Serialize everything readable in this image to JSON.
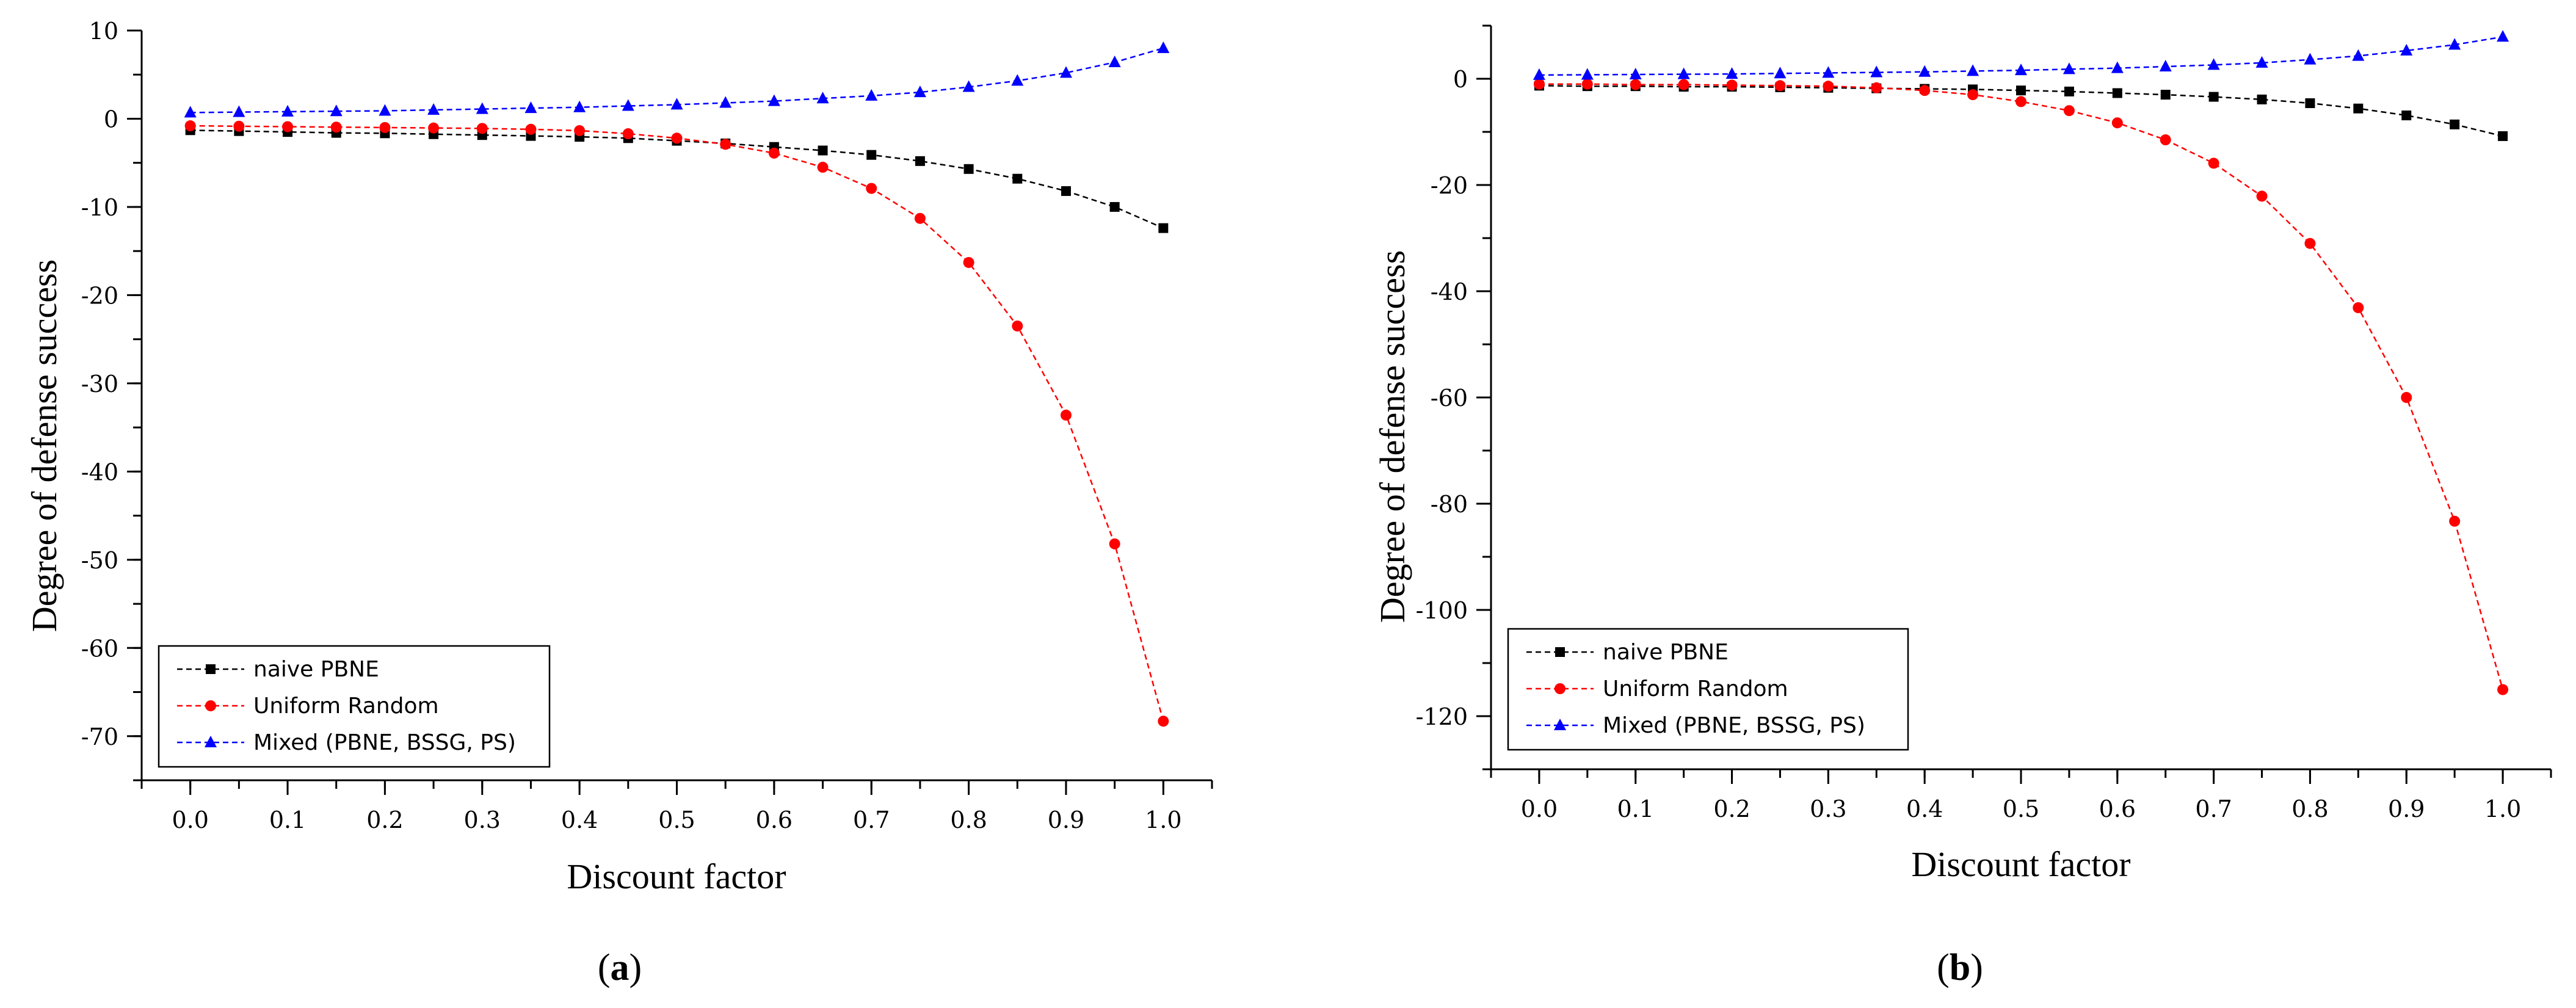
{
  "chart_data": [
    {
      "type": "line",
      "panel_label": "(a)",
      "panel_letter": "a",
      "xlabel": "Discount factor",
      "ylabel": "Degree of defense success",
      "xlim": [
        -0.05,
        1.05
      ],
      "ylim": [
        -75,
        10
      ],
      "x_ticks": [
        0.0,
        0.1,
        0.2,
        0.3,
        0.4,
        0.5,
        0.6,
        0.7,
        0.8,
        0.9,
        1.0
      ],
      "x_tick_labels": [
        "0.0",
        "0.1",
        "0.2",
        "0.3",
        "0.4",
        "0.5",
        "0.6",
        "0.7",
        "0.8",
        "0.9",
        "1.0"
      ],
      "y_ticks": [
        10,
        0,
        -10,
        -20,
        -30,
        -40,
        -50,
        -60,
        -70
      ],
      "y_tick_labels": [
        "10",
        "0",
        "-10",
        "-20",
        "-30",
        "-40",
        "-50",
        "-60",
        "-70"
      ],
      "legend_position": "bottom-left",
      "x": [
        0.0,
        0.05,
        0.1,
        0.15,
        0.2,
        0.25,
        0.3,
        0.35,
        0.4,
        0.45,
        0.5,
        0.55,
        0.6,
        0.65,
        0.7,
        0.75,
        0.8,
        0.85,
        0.9,
        0.95,
        1.0
      ],
      "series": [
        {
          "name": "naive PBNE",
          "color": "#000000",
          "marker": "square",
          "values": [
            -1.3,
            -1.4,
            -1.5,
            -1.6,
            -1.65,
            -1.75,
            -1.85,
            -1.95,
            -2.05,
            -2.2,
            -2.5,
            -2.8,
            -3.2,
            -3.6,
            -4.1,
            -4.8,
            -5.7,
            -6.8,
            -8.2,
            -10.0,
            -12.4
          ]
        },
        {
          "name": "Uniform Random",
          "color": "#ff0000",
          "marker": "circle",
          "values": [
            -0.8,
            -0.85,
            -0.9,
            -0.95,
            -1.0,
            -1.05,
            -1.1,
            -1.2,
            -1.35,
            -1.7,
            -2.2,
            -2.9,
            -3.9,
            -5.5,
            -7.9,
            -11.3,
            -16.3,
            -23.5,
            -33.6,
            -48.2,
            -68.3
          ]
        },
        {
          "name": "Mixed (PBNE, BSSG, PS)",
          "color": "#0000ff",
          "marker": "triangle",
          "values": [
            0.7,
            0.75,
            0.8,
            0.85,
            0.9,
            1.0,
            1.1,
            1.2,
            1.3,
            1.45,
            1.6,
            1.8,
            2.0,
            2.3,
            2.6,
            3.0,
            3.6,
            4.3,
            5.2,
            6.4,
            8.0
          ]
        }
      ]
    },
    {
      "type": "line",
      "panel_label": "(b)",
      "panel_letter": "b",
      "xlabel": "Discount factor",
      "ylabel": "Degree of defense success",
      "xlim": [
        -0.05,
        1.05
      ],
      "ylim": [
        -130,
        10
      ],
      "x_ticks": [
        0.0,
        0.1,
        0.2,
        0.3,
        0.4,
        0.5,
        0.6,
        0.7,
        0.8,
        0.9,
        1.0
      ],
      "x_tick_labels": [
        "0.0",
        "0.1",
        "0.2",
        "0.3",
        "0.4",
        "0.5",
        "0.6",
        "0.7",
        "0.8",
        "0.9",
        "1.0"
      ],
      "y_ticks": [
        0,
        -20,
        -40,
        -60,
        -80,
        -100,
        -120
      ],
      "y_tick_labels": [
        "0",
        "-20",
        "-40",
        "-60",
        "-80",
        "-100",
        "-120"
      ],
      "legend_position": "bottom-left",
      "x": [
        0.0,
        0.05,
        0.1,
        0.15,
        0.2,
        0.25,
        0.3,
        0.35,
        0.4,
        0.45,
        0.5,
        0.55,
        0.6,
        0.65,
        0.7,
        0.75,
        0.8,
        0.85,
        0.9,
        0.95,
        1.0
      ],
      "series": [
        {
          "name": "naive PBNE",
          "color": "#000000",
          "marker": "square",
          "values": [
            -1.3,
            -1.4,
            -1.4,
            -1.5,
            -1.5,
            -1.6,
            -1.7,
            -1.8,
            -1.9,
            -2.0,
            -2.2,
            -2.4,
            -2.7,
            -3.0,
            -3.4,
            -3.9,
            -4.6,
            -5.6,
            -6.9,
            -8.6,
            -10.8
          ]
        },
        {
          "name": "Uniform Random",
          "color": "#ff0000",
          "marker": "circle",
          "values": [
            -1.0,
            -1.0,
            -1.1,
            -1.1,
            -1.2,
            -1.3,
            -1.4,
            -1.7,
            -2.2,
            -3.0,
            -4.3,
            -6.0,
            -8.3,
            -11.5,
            -15.9,
            -22.1,
            -31.0,
            -43.1,
            -60.0,
            -83.3,
            -115.0
          ]
        },
        {
          "name": "Mixed (PBNE, BSSG, PS)",
          "color": "#0000ff",
          "marker": "triangle",
          "values": [
            0.7,
            0.75,
            0.8,
            0.85,
            0.9,
            1.0,
            1.1,
            1.2,
            1.3,
            1.45,
            1.6,
            1.8,
            2.0,
            2.3,
            2.6,
            3.0,
            3.6,
            4.3,
            5.3,
            6.4,
            7.9
          ]
        }
      ]
    }
  ]
}
